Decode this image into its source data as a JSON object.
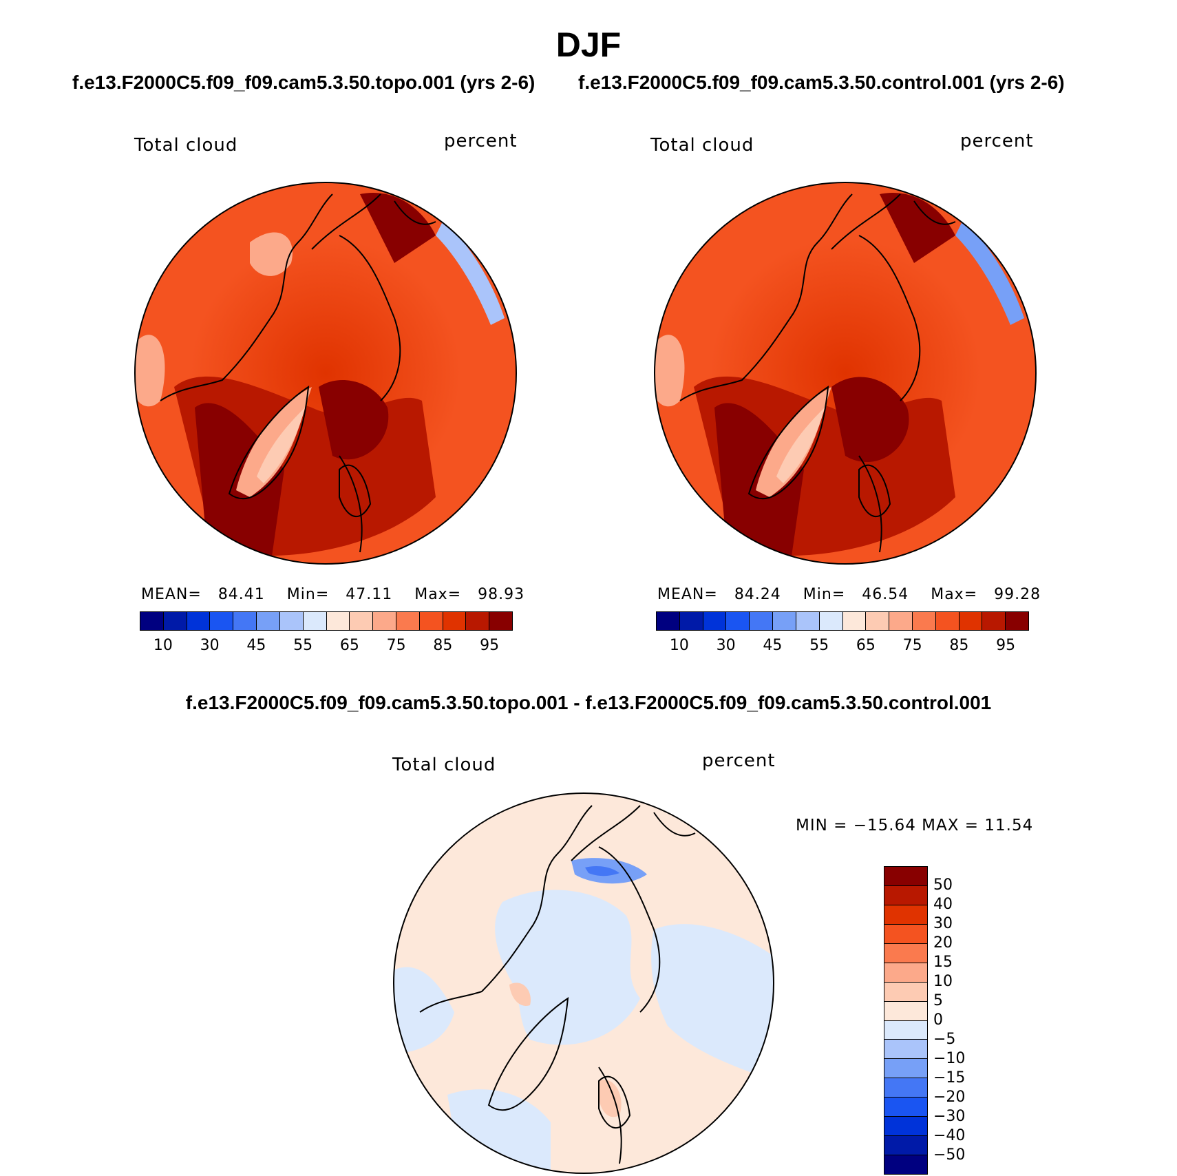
{
  "figure": {
    "season": "DJF",
    "diff_title": "f.e13.F2000C5.f09_f09.cam5.3.50.topo.001 - f.e13.F2000C5.f09_f09.cam5.3.50.control.001"
  },
  "panels": [
    {
      "run_title": "f.e13.F2000C5.f09_f09.cam5.3.50.topo.001 (yrs 2-6)",
      "variable": "Total cloud",
      "units": "percent",
      "stats": {
        "mean_label": "MEAN=",
        "mean": "84.41",
        "min_label": "Min=",
        "min": "47.11",
        "max_label": "Max=",
        "max": "98.93"
      }
    },
    {
      "run_title": "f.e13.F2000C5.f09_f09.cam5.3.50.control.001 (yrs 2-6)",
      "variable": "Total cloud",
      "units": "percent",
      "stats": {
        "mean_label": "MEAN=",
        "mean": "84.24",
        "min_label": "Min=",
        "min": "46.54",
        "max_label": "Max=",
        "max": "99.28"
      }
    }
  ],
  "difference": {
    "variable": "Total cloud",
    "units": "percent",
    "minmax": "MIN = −15.64 MAX =   11.54"
  },
  "colorbar_abs": {
    "colors": [
      "#000080",
      "#001aa8",
      "#0033d9",
      "#1a55f2",
      "#4477f5",
      "#77a0f7",
      "#aac4fa",
      "#dbe9fc",
      "#fde8da",
      "#fdcbb3",
      "#fca98a",
      "#fa7a4e",
      "#f45320",
      "#e03300",
      "#b81800",
      "#880000"
    ],
    "ticks": [
      "10",
      "30",
      "45",
      "55",
      "65",
      "75",
      "85",
      "95"
    ]
  },
  "colorbar_diff": {
    "colors": [
      "#880000",
      "#b81800",
      "#e03300",
      "#f45320",
      "#fa7a4e",
      "#fca98a",
      "#fdcbb3",
      "#fde8da",
      "#dbe9fc",
      "#aac4fa",
      "#77a0f7",
      "#4477f5",
      "#1a55f2",
      "#0033d9",
      "#001aa8",
      "#000080"
    ],
    "ticks": [
      "50",
      "40",
      "30",
      "20",
      "15",
      "10",
      "5",
      "0",
      "−5",
      "−10",
      "−15",
      "−20",
      "−30",
      "−40",
      "−50"
    ]
  }
}
